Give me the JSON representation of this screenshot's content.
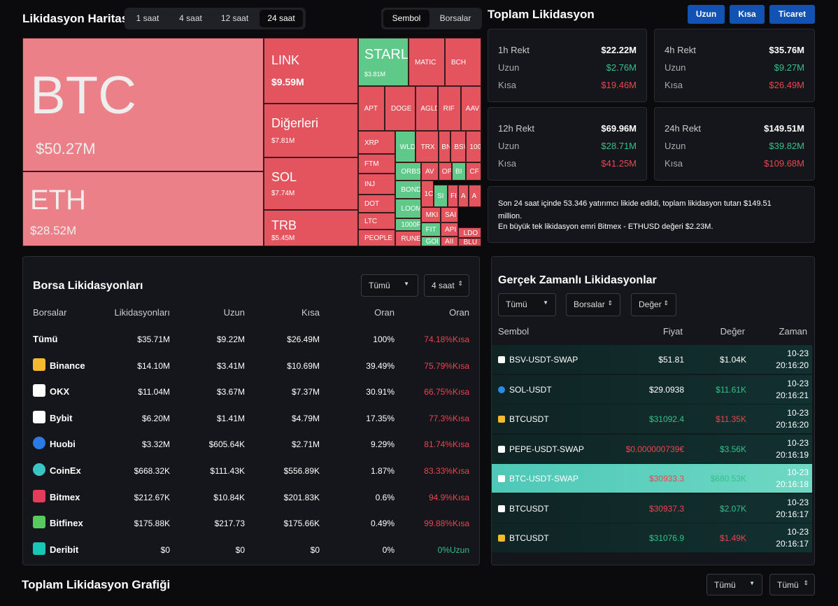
{
  "heatmap": {
    "title": "Likidasyon Haritası",
    "tabs": [
      "1 saat",
      "4 saat",
      "12 saat",
      "24 saat"
    ],
    "toggle": [
      "Sembol",
      "Borsalar"
    ],
    "tiles": [
      {
        "label": "BTC",
        "value": "$50.27M",
        "color": "#ec8089"
      },
      {
        "label": "ETH",
        "value": "$28.52M",
        "color": "#ec8089"
      },
      {
        "label": "LINK",
        "value": "$9.59M",
        "color": "#e4545e"
      },
      {
        "label": "Diğerleri",
        "value": "$7.81M",
        "color": "#e4545e"
      },
      {
        "label": "SOL",
        "value": "$7.74M",
        "color": "#e4545e"
      },
      {
        "label": "TRB",
        "value": "$5.45M",
        "color": "#e4545e"
      },
      {
        "label": "STARL",
        "value": "$3.81M",
        "color": "#5ec988"
      },
      {
        "label": "MATIC",
        "color": "#e4545e"
      },
      {
        "label": "BCH",
        "color": "#e4545e"
      },
      {
        "label": "APT",
        "color": "#e4545e"
      },
      {
        "label": "DOGE",
        "color": "#e4545e"
      },
      {
        "label": "AGLD",
        "color": "#e4545e"
      },
      {
        "label": "RIF",
        "color": "#e4545e"
      },
      {
        "label": "AAV",
        "color": "#e4545e"
      },
      {
        "label": "XRP",
        "color": "#e4545e"
      },
      {
        "label": "FTM",
        "color": "#e4545e"
      },
      {
        "label": "INJ",
        "color": "#e4545e"
      },
      {
        "label": "DOT",
        "color": "#e4545e"
      },
      {
        "label": "LTC",
        "color": "#e4545e"
      },
      {
        "label": "PEOPLE",
        "color": "#e4545e"
      },
      {
        "label": "WLD",
        "color": "#5ec988"
      },
      {
        "label": "TRX",
        "color": "#e4545e"
      },
      {
        "label": "BN",
        "color": "#e4545e"
      },
      {
        "label": "BS\\/",
        "color": "#e4545e"
      },
      {
        "label": "100",
        "color": "#e4545e"
      },
      {
        "label": "ORBS",
        "color": "#5ec988"
      },
      {
        "label": "AV",
        "color": "#e4545e"
      },
      {
        "label": "OP",
        "color": "#e4545e"
      },
      {
        "label": "BI",
        "color": "#5ec988"
      },
      {
        "label": "CF",
        "color": "#e4545e"
      },
      {
        "label": "BOND",
        "color": "#5ec988"
      },
      {
        "label": "LOOM",
        "color": "#5ec988"
      },
      {
        "label": "1000F",
        "color": "#5ec988"
      },
      {
        "label": "RUNE",
        "color": "#e4545e"
      },
      {
        "label": "1C",
        "color": "#e4545e"
      },
      {
        "label": "SI",
        "color": "#5ec988"
      },
      {
        "label": "FI",
        "color": "#e4545e"
      },
      {
        "label": "A",
        "color": "#e4545e"
      },
      {
        "label": "A",
        "color": "#e4545e"
      },
      {
        "label": "MKI",
        "color": "#e4545e"
      },
      {
        "label": "SAI",
        "color": "#e4545e"
      },
      {
        "label": "FIT",
        "color": "#5ec988"
      },
      {
        "label": "API",
        "color": "#e4545e"
      },
      {
        "label": "GOI",
        "color": "#5ec988"
      },
      {
        "label": "AII",
        "color": "#e4545e"
      },
      {
        "label": "LDO",
        "color": "#e4545e"
      },
      {
        "label": "BLU",
        "color": "#d84a55"
      }
    ]
  },
  "total": {
    "title": "Toplam Likidasyon",
    "buttons": [
      "Uzun",
      "Kısa",
      "Ticaret"
    ],
    "cards": [
      {
        "title": "1h Rekt",
        "total": "$22.22M",
        "long_label": "Uzun",
        "long": "$2.76M",
        "short_label": "Kısa",
        "short": "$19.46M"
      },
      {
        "title": "4h Rekt",
        "total": "$35.76M",
        "long_label": "Uzun",
        "long": "$9.27M",
        "short_label": "Kısa",
        "short": "$26.49M"
      },
      {
        "title": "12h Rekt",
        "total": "$69.96M",
        "long_label": "Uzun",
        "long": "$28.71M",
        "short_label": "Kısa",
        "short": "$41.25M"
      },
      {
        "title": "24h Rekt",
        "total": "$149.51M",
        "long_label": "Uzun",
        "long": "$39.82M",
        "short_label": "Kısa",
        "short": "$109.68M"
      }
    ],
    "summary": [
      "Son 24 saat içinde 53.346 yatırımcı likide edildi, toplam likidasyon tutarı $149.51 million.",
      "En büyük tek likidasyon emri Bitmex - ETHUSD değeri $2.23M."
    ]
  },
  "exchanges": {
    "title": "Borsa Likidasyonları",
    "filters": [
      "Tümü",
      "4 saat"
    ],
    "headers": [
      "Borsalar",
      "Likidasyonları",
      "Uzun",
      "Kısa",
      "Oran",
      "Oran"
    ],
    "rows": [
      [
        "Tümü",
        "$35.71M",
        "$9.22M",
        "$26.49M",
        "100%",
        "74.18%Kısa"
      ],
      [
        "Binance",
        "$14.10M",
        "$3.41M",
        "$10.69M",
        "39.49%",
        "75.79%Kısa"
      ],
      [
        "OKX",
        "$11.04M",
        "$3.67M",
        "$7.37M",
        "30.91%",
        "66.75%Kısa"
      ],
      [
        "Bybit",
        "$6.20M",
        "$1.41M",
        "$4.79M",
        "17.35%",
        "77.3%Kısa"
      ],
      [
        "Huobi",
        "$3.32M",
        "$605.64K",
        "$2.71M",
        "9.29%",
        "81.74%Kısa"
      ],
      [
        "CoinEx",
        "$668.32K",
        "$111.43K",
        "$556.89K",
        "1.87%",
        "83.33%Kısa"
      ],
      [
        "Bitmex",
        "$212.67K",
        "$10.84K",
        "$201.83K",
        "0.6%",
        "94.9%Kısa"
      ],
      [
        "Bitfinex",
        "$175.88K",
        "$217.73",
        "$175.66K",
        "0.49%",
        "99.88%Kısa"
      ],
      [
        "Deribit",
        "$0",
        "$0",
        "$0",
        "0%",
        "0%Uzun"
      ]
    ]
  },
  "realtime": {
    "title": "Gerçek Zamanlı Likidasyonlar",
    "filters": [
      "Tümü",
      "Borsalar",
      "Değer"
    ],
    "headers": [
      "Sembol",
      "Fiyat",
      "Değer",
      "Zaman"
    ],
    "rows": [
      {
        "symbol": "BSV-USDT-SWAP",
        "price": "$51.81",
        "value": "$1.04K",
        "date": "10-23",
        "time": "20:16:20",
        "price_color": "#ffffff",
        "value_color": "#ffffff"
      },
      {
        "symbol": "SOL-USDT",
        "price": "$29.0938",
        "value": "$11.61K",
        "date": "10-23",
        "time": "20:16:21",
        "price_color": "#ffffff",
        "value_color": "#35c08a"
      },
      {
        "symbol": "BTCUSDT",
        "price": "$31092.4",
        "value": "$11.35K",
        "date": "10-23",
        "time": "20:16:20",
        "price_color": "#35c08a",
        "value_color": "#e8464f"
      },
      {
        "symbol": "PEPE-USDT-SWAP",
        "price": "$0.000000739€",
        "value": "$3.56K",
        "date": "10-23",
        "time": "20:16:19",
        "price_color": "#e8464f",
        "value_color": "#35c08a"
      },
      {
        "symbol": "BTC-USDT-SWAP",
        "price": "$30933.3",
        "value": "$680.53K",
        "date": "10-23",
        "time": "20:16:18",
        "price_color": "#e8464f",
        "value_color": "#35c08a"
      },
      {
        "symbol": "BTCUSDT",
        "price": "$30937.3",
        "value": "$2.07K",
        "date": "10-23",
        "time": "20:16:17",
        "price_color": "#e8464f",
        "value_color": "#35c08a"
      },
      {
        "symbol": "BTCUSDT",
        "price": "$31076.9",
        "value": "$1.49K",
        "date": "10-23",
        "time": "20:16:17",
        "price_color": "#35c08a",
        "value_color": "#e8464f"
      }
    ]
  },
  "chart": {
    "title": "Toplam Likidasyon Grafiği",
    "filters": [
      "Tümü",
      "Tümü"
    ]
  }
}
